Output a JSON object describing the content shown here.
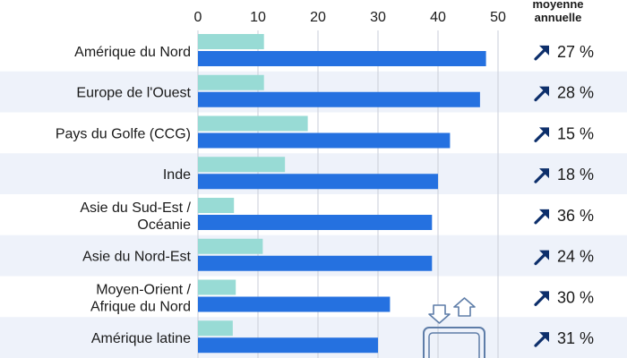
{
  "chart_data": {
    "type": "bar",
    "orientation": "horizontal",
    "xlim": [
      0,
      50
    ],
    "x_ticks": [
      "0",
      "10",
      "20",
      "30",
      "40",
      "50"
    ],
    "grid": true,
    "growth_header": [
      "moyenne",
      "annuelle"
    ],
    "categories": [
      [
        "Amérique du Nord"
      ],
      [
        "Europe de l'Ouest"
      ],
      [
        "Pays du Golfe (CCG)"
      ],
      [
        "Inde"
      ],
      [
        "Asie du Sud-Est /",
        "Océanie"
      ],
      [
        "Asie du Nord-Est"
      ],
      [
        "Moyen-Orient /",
        "Afrique du Nord"
      ],
      [
        "Amérique latine"
      ]
    ],
    "series": [
      {
        "values": [
          11,
          11,
          18.3,
          14.5,
          6,
          10.8,
          6.3,
          5.8
        ]
      },
      {
        "values": [
          48,
          47,
          42,
          40,
          39,
          39,
          32,
          30
        ]
      }
    ],
    "growth": [
      "27 %",
      "28 %",
      "15 %",
      "18 %",
      "36 %",
      "24 %",
      "30 %",
      "31 %"
    ],
    "colors": {
      "series_light": "#98dbd5",
      "series_dark": "#2571e0",
      "row_band": "#eef2fa",
      "arrow": "#0d2f6b",
      "grid": "#c9ced8",
      "icon": "#5e7da8"
    }
  }
}
